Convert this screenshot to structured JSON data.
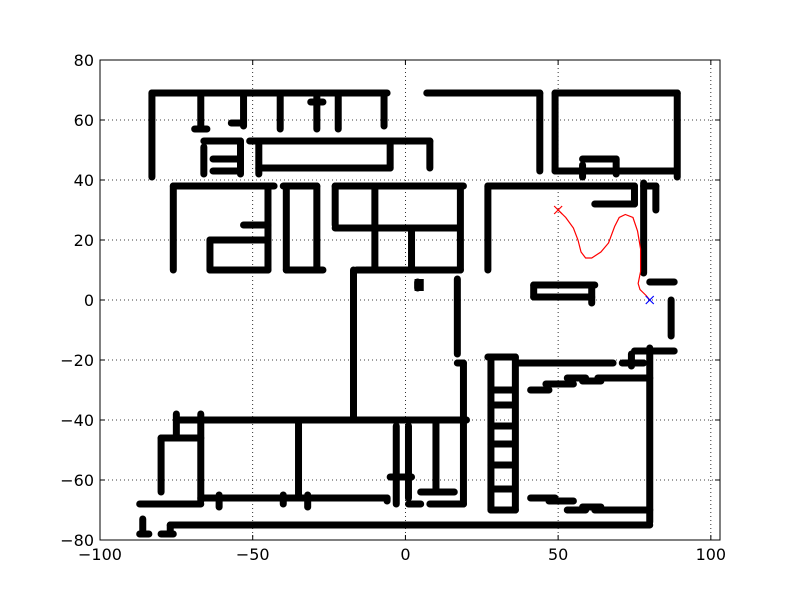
{
  "chart_data": {
    "type": "scatter",
    "title": "",
    "xlabel": "",
    "ylabel": "",
    "xlim": [
      -100,
      103
    ],
    "ylim": [
      -80,
      80
    ],
    "grid": true,
    "xticks": [
      -100,
      -50,
      0,
      50,
      100
    ],
    "yticks": [
      -80,
      -60,
      -40,
      -20,
      0,
      20,
      40,
      60,
      80
    ],
    "xtick_labels": [
      "−100",
      "−50",
      "0",
      "50",
      "100"
    ],
    "ytick_labels": [
      "−80",
      "−60",
      "−40",
      "−20",
      "0",
      "20",
      "40",
      "60",
      "80"
    ],
    "colors": {
      "walls": "#000000",
      "path": "#ff0000",
      "start_marker": "#ff0000",
      "goal_marker": "#0000ff"
    },
    "walls": [
      [
        [
          -83,
          69
        ],
        [
          -6,
          69
        ]
      ],
      [
        [
          7,
          69
        ],
        [
          44,
          69
        ]
      ],
      [
        [
          49,
          69
        ],
        [
          89,
          69
        ]
      ],
      [
        [
          -83,
          69
        ],
        [
          -83,
          41
        ]
      ],
      [
        [
          89,
          69
        ],
        [
          89,
          41
        ]
      ],
      [
        [
          44,
          69
        ],
        [
          44,
          43
        ]
      ],
      [
        [
          49,
          69
        ],
        [
          49,
          43
        ]
      ],
      [
        [
          -67,
          68
        ],
        [
          -67,
          57
        ]
      ],
      [
        [
          -69,
          57
        ],
        [
          -65,
          57
        ]
      ],
      [
        [
          -53,
          68
        ],
        [
          -53,
          58
        ]
      ],
      [
        [
          -57,
          59
        ],
        [
          -53,
          59
        ]
      ],
      [
        [
          -41,
          68
        ],
        [
          -41,
          57
        ]
      ],
      [
        [
          -29,
          68
        ],
        [
          -29,
          57
        ]
      ],
      [
        [
          -31,
          66
        ],
        [
          -27,
          66
        ]
      ],
      [
        [
          -22,
          68
        ],
        [
          -22,
          57
        ]
      ],
      [
        [
          -7,
          68
        ],
        [
          -7,
          58
        ]
      ],
      [
        [
          -51,
          53
        ],
        [
          8,
          53
        ]
      ],
      [
        [
          -66,
          53
        ],
        [
          -54,
          53
        ]
      ],
      [
        [
          -66,
          51
        ],
        [
          -66,
          42
        ]
      ],
      [
        [
          -63,
          47
        ],
        [
          -54,
          47
        ]
      ],
      [
        [
          -63,
          43
        ],
        [
          -54,
          43
        ]
      ],
      [
        [
          -54,
          53
        ],
        [
          -54,
          42
        ]
      ],
      [
        [
          -48,
          52
        ],
        [
          -48,
          42
        ]
      ],
      [
        [
          -48,
          44
        ],
        [
          -5,
          44
        ]
      ],
      [
        [
          -5,
          52
        ],
        [
          -5,
          44
        ]
      ],
      [
        [
          8,
          53
        ],
        [
          8,
          44
        ]
      ],
      [
        [
          58,
          45
        ],
        [
          58,
          41
        ]
      ],
      [
        [
          58,
          47
        ],
        [
          69,
          47
        ]
      ],
      [
        [
          69,
          47
        ],
        [
          69,
          42
        ]
      ],
      [
        [
          49,
          43
        ],
        [
          88,
          43
        ]
      ],
      [
        [
          -76,
          38
        ],
        [
          -43,
          38
        ]
      ],
      [
        [
          -76,
          38
        ],
        [
          -76,
          10
        ]
      ],
      [
        [
          -45,
          38
        ],
        [
          -45,
          10
        ]
      ],
      [
        [
          -53,
          25
        ],
        [
          -45,
          25
        ]
      ],
      [
        [
          -64,
          20
        ],
        [
          -45,
          20
        ]
      ],
      [
        [
          -64,
          20
        ],
        [
          -64,
          10
        ]
      ],
      [
        [
          -64,
          10
        ],
        [
          -45,
          10
        ]
      ],
      [
        [
          -40,
          38
        ],
        [
          -29,
          38
        ]
      ],
      [
        [
          -39,
          38
        ],
        [
          -39,
          10
        ]
      ],
      [
        [
          -29,
          38
        ],
        [
          -29,
          10
        ]
      ],
      [
        [
          -39,
          10
        ],
        [
          -27,
          10
        ]
      ],
      [
        [
          -23,
          38
        ],
        [
          19,
          38
        ]
      ],
      [
        [
          -23,
          38
        ],
        [
          -23,
          25
        ]
      ],
      [
        [
          -23,
          24
        ],
        [
          17,
          24
        ]
      ],
      [
        [
          -10,
          24
        ],
        [
          -10,
          10
        ]
      ],
      [
        [
          2,
          24
        ],
        [
          2,
          10
        ]
      ],
      [
        [
          -16,
          10
        ],
        [
          18,
          10
        ]
      ],
      [
        [
          -10,
          38
        ],
        [
          -10,
          25
        ]
      ],
      [
        [
          18,
          38
        ],
        [
          18,
          10
        ]
      ],
      [
        [
          -17,
          10
        ],
        [
          -17,
          -40
        ]
      ],
      [
        [
          27,
          38
        ],
        [
          75,
          38
        ]
      ],
      [
        [
          27,
          38
        ],
        [
          27,
          10
        ]
      ],
      [
        [
          62,
          32
        ],
        [
          75,
          32
        ]
      ],
      [
        [
          75,
          38
        ],
        [
          75,
          32
        ]
      ],
      [
        [
          78,
          39
        ],
        [
          78,
          9
        ]
      ],
      [
        [
          82,
          38
        ],
        [
          82,
          30
        ]
      ],
      [
        [
          78,
          38
        ],
        [
          82,
          38
        ]
      ],
      [
        [
          80,
          6
        ],
        [
          88,
          6
        ]
      ],
      [
        [
          42,
          5
        ],
        [
          62,
          5
        ]
      ],
      [
        [
          42,
          5
        ],
        [
          42,
          1
        ]
      ],
      [
        [
          42,
          1
        ],
        [
          61,
          1
        ]
      ],
      [
        [
          61,
          5
        ],
        [
          61,
          -1
        ]
      ],
      [
        [
          87,
          0
        ],
        [
          87,
          -12
        ]
      ],
      [
        [
          17,
          7
        ],
        [
          17,
          -18
        ]
      ],
      [
        [
          4,
          6
        ],
        [
          4,
          4
        ]
      ],
      [
        [
          75,
          -17
        ],
        [
          88,
          -17
        ]
      ],
      [
        [
          74,
          -18
        ],
        [
          74,
          -22
        ]
      ],
      [
        [
          80,
          -16
        ],
        [
          80,
          -74
        ]
      ],
      [
        [
          37,
          -21
        ],
        [
          68,
          -21
        ]
      ],
      [
        [
          71,
          -21
        ],
        [
          78,
          -21
        ]
      ],
      [
        [
          41,
          -30
        ],
        [
          47,
          -30
        ]
      ],
      [
        [
          46,
          -28
        ],
        [
          55,
          -28
        ]
      ],
      [
        [
          53,
          -26
        ],
        [
          59,
          -26
        ]
      ],
      [
        [
          58,
          -27
        ],
        [
          64,
          -27
        ]
      ],
      [
        [
          63,
          -26
        ],
        [
          80,
          -26
        ]
      ],
      [
        [
          27,
          -19
        ],
        [
          36,
          -19
        ]
      ],
      [
        [
          28,
          -19
        ],
        [
          28,
          -70
        ]
      ],
      [
        [
          36,
          -19
        ],
        [
          36,
          -70
        ]
      ],
      [
        [
          28,
          -30
        ],
        [
          35,
          -30
        ]
      ],
      [
        [
          28,
          -35
        ],
        [
          35,
          -35
        ]
      ],
      [
        [
          28,
          -42
        ],
        [
          35,
          -42
        ]
      ],
      [
        [
          28,
          -48
        ],
        [
          35,
          -48
        ]
      ],
      [
        [
          28,
          -55
        ],
        [
          35,
          -55
        ]
      ],
      [
        [
          28,
          -63
        ],
        [
          35,
          -63
        ]
      ],
      [
        [
          28,
          -70
        ],
        [
          36,
          -70
        ]
      ],
      [
        [
          41,
          -66
        ],
        [
          49,
          -66
        ]
      ],
      [
        [
          47,
          -67
        ],
        [
          55,
          -67
        ]
      ],
      [
        [
          53,
          -70
        ],
        [
          59,
          -70
        ]
      ],
      [
        [
          58,
          -69
        ],
        [
          64,
          -69
        ]
      ],
      [
        [
          62,
          -70
        ],
        [
          80,
          -70
        ]
      ],
      [
        [
          -17,
          -40
        ],
        [
          20,
          -40
        ]
      ],
      [
        [
          -75,
          -40
        ],
        [
          -17,
          -40
        ]
      ],
      [
        [
          -75,
          -38
        ],
        [
          -75,
          -46
        ]
      ],
      [
        [
          -80,
          -46
        ],
        [
          -67,
          -46
        ]
      ],
      [
        [
          -80,
          -46
        ],
        [
          -80,
          -64
        ]
      ],
      [
        [
          -67,
          -38
        ],
        [
          -67,
          -67
        ]
      ],
      [
        [
          -67,
          -66
        ],
        [
          -6,
          -66
        ]
      ],
      [
        [
          -61,
          -65
        ],
        [
          -61,
          -69
        ]
      ],
      [
        [
          -40,
          -65
        ],
        [
          -40,
          -68
        ]
      ],
      [
        [
          -35,
          -40
        ],
        [
          -35,
          -65
        ]
      ],
      [
        [
          -32,
          -65
        ],
        [
          -32,
          -69
        ]
      ],
      [
        [
          -87,
          -68
        ],
        [
          -67,
          -68
        ]
      ],
      [
        [
          -6,
          -66
        ],
        [
          -6,
          -67
        ]
      ],
      [
        [
          -3,
          -42
        ],
        [
          -3,
          -68
        ]
      ],
      [
        [
          -5,
          -59
        ],
        [
          2,
          -59
        ]
      ],
      [
        [
          1,
          -42
        ],
        [
          1,
          -66
        ]
      ],
      [
        [
          1,
          -68
        ],
        [
          5,
          -68
        ]
      ],
      [
        [
          5,
          -64
        ],
        [
          16,
          -64
        ]
      ],
      [
        [
          10,
          -40
        ],
        [
          10,
          -64
        ]
      ],
      [
        [
          8,
          -68
        ],
        [
          19,
          -68
        ]
      ],
      [
        [
          19,
          -21
        ],
        [
          19,
          -68
        ]
      ],
      [
        [
          17,
          -21
        ],
        [
          19,
          -21
        ]
      ],
      [
        [
          -77,
          -75
        ],
        [
          80,
          -75
        ]
      ],
      [
        [
          -77,
          -75
        ],
        [
          -77,
          -78
        ]
      ],
      [
        [
          -80,
          -78
        ],
        [
          -76,
          -78
        ]
      ],
      [
        [
          -87,
          -78
        ],
        [
          -84,
          -78
        ]
      ],
      [
        [
          -86,
          -73
        ],
        [
          -86,
          -78
        ]
      ]
    ],
    "walls_filled_block": {
      "x": [
        3,
        6
      ],
      "y": [
        3,
        7
      ]
    },
    "path": {
      "name": "",
      "x": [
        50,
        52.5,
        55,
        56.5,
        57.5,
        59,
        61,
        64,
        66.5,
        68.5,
        70,
        72,
        74.5,
        76,
        77,
        77,
        76.2,
        76.8,
        77.8,
        78.8,
        80
      ],
      "y": [
        30,
        27.5,
        24,
        20,
        16,
        14,
        14,
        16,
        19,
        24.5,
        27.5,
        28.5,
        27.5,
        23,
        17,
        9.5,
        5.5,
        3.5,
        2.5,
        1.5,
        0
      ]
    },
    "start": {
      "x": 50,
      "y": 30,
      "marker": "x"
    },
    "goal": {
      "x": 80,
      "y": 0,
      "marker": "x"
    }
  }
}
